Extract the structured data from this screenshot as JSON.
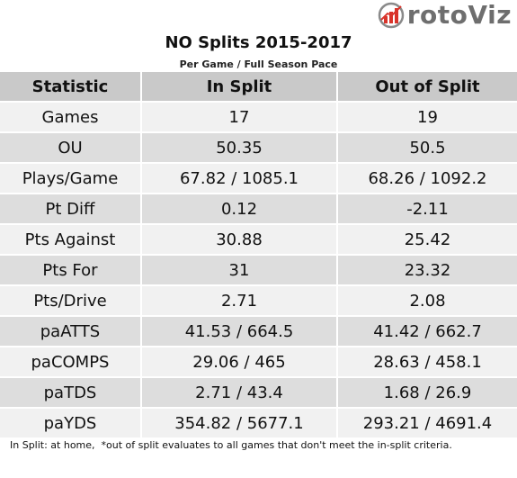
{
  "logo": {
    "brand_prefix": "roto",
    "brand_suffix": "Viz",
    "icon": "bar-chart-logo-icon",
    "accent_color": "#d9342b"
  },
  "title": "NO Splits 2015-2017",
  "subtitle": "Per Game / Full Season Pace",
  "table": {
    "headers": [
      "Statistic",
      "In Split",
      "Out of Split"
    ],
    "rows": [
      {
        "stat": "Games",
        "in_split": "17",
        "out_split": "19"
      },
      {
        "stat": "OU",
        "in_split": "50.35",
        "out_split": "50.5"
      },
      {
        "stat": "Plays/Game",
        "in_split": "67.82 / 1085.1",
        "out_split": "68.26 / 1092.2"
      },
      {
        "stat": "Pt Diff",
        "in_split": "0.12",
        "out_split": "-2.11"
      },
      {
        "stat": "Pts Against",
        "in_split": "30.88",
        "out_split": "25.42"
      },
      {
        "stat": "Pts For",
        "in_split": "31",
        "out_split": "23.32"
      },
      {
        "stat": "Pts/Drive",
        "in_split": "2.71",
        "out_split": "2.08"
      },
      {
        "stat": "paATTS",
        "in_split": "41.53 / 664.5",
        "out_split": "41.42 / 662.7"
      },
      {
        "stat": "paCOMPS",
        "in_split": "29.06 / 465",
        "out_split": "28.63 / 458.1"
      },
      {
        "stat": "paTDS",
        "in_split": "2.71 / 43.4",
        "out_split": "1.68 / 26.9"
      },
      {
        "stat": "paYDS",
        "in_split": "354.82 / 5677.1",
        "out_split": "293.21 / 4691.4"
      }
    ]
  },
  "footnote": "In Split: at home,  *out of split evaluates to all games that don't meet the in-split criteria."
}
